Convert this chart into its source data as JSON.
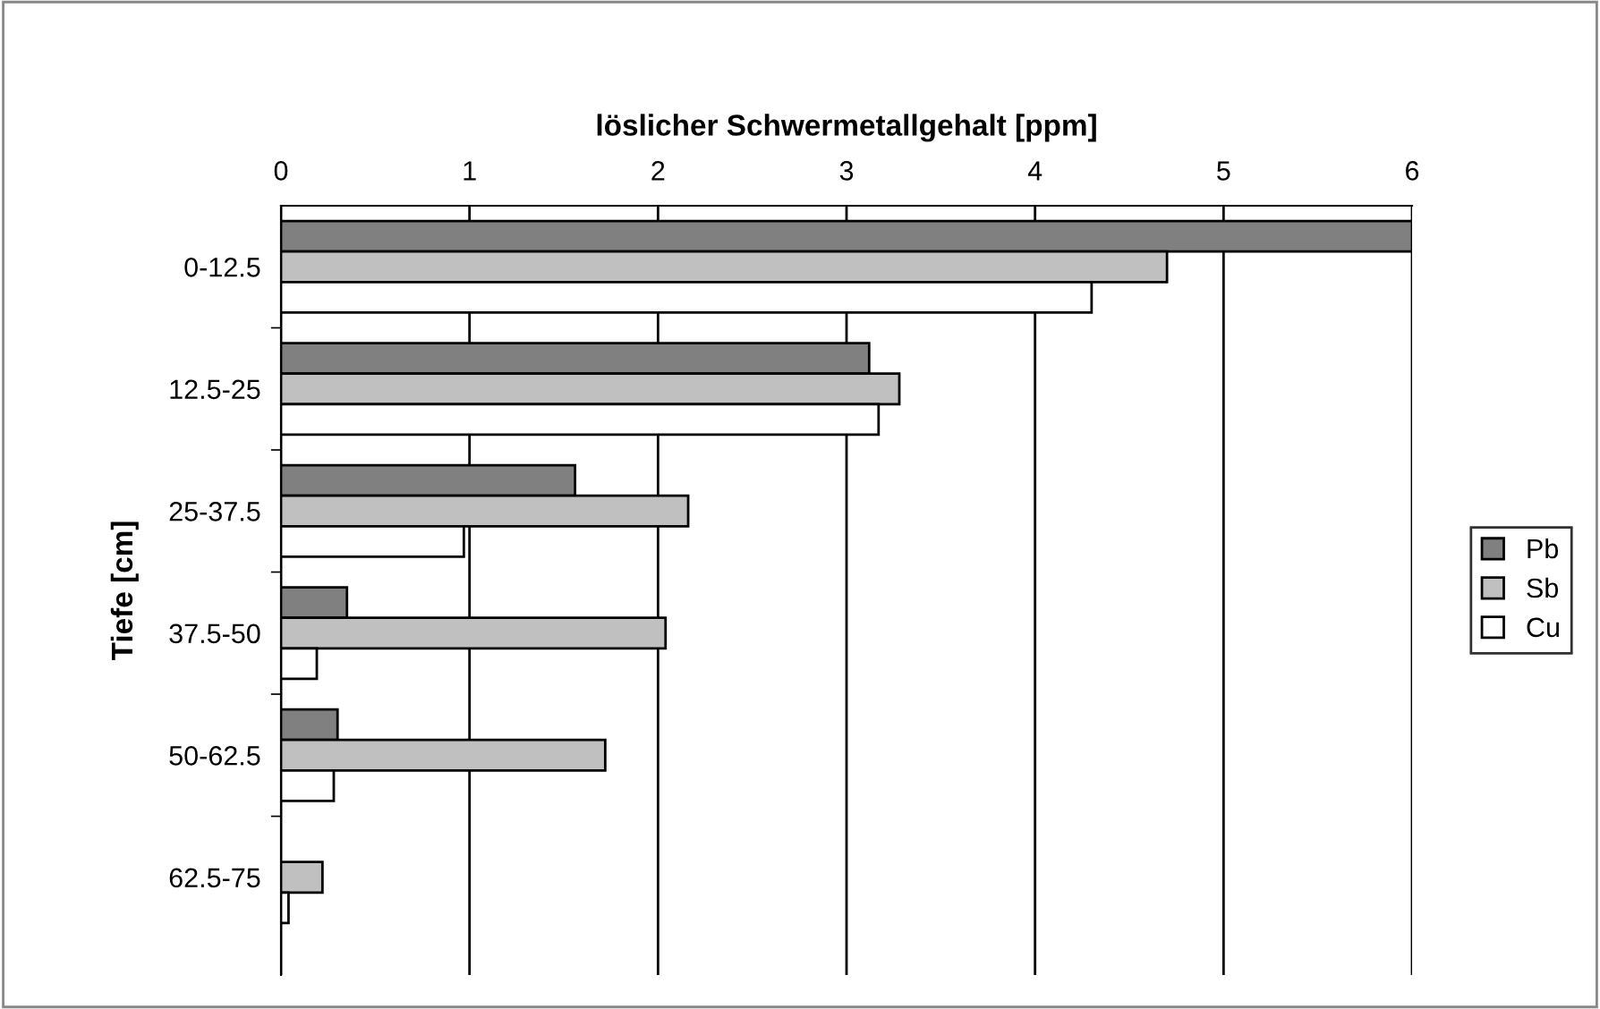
{
  "chart_data": {
    "type": "bar",
    "orientation": "horizontal",
    "xlabel": "löslicher Schwermetallgehalt [ppm]",
    "ylabel": "Tiefe [cm]",
    "categories": [
      "0-12.5",
      "12.5-25",
      "25-37.5",
      "37.5-50",
      "50-62.5",
      "62.5-75"
    ],
    "series": [
      {
        "name": "Pb",
        "color": "#808080",
        "values": [
          6.0,
          3.12,
          1.56,
          0.35,
          0.3,
          null
        ]
      },
      {
        "name": "Sb",
        "color": "#c0c0c0",
        "values": [
          4.7,
          3.28,
          2.16,
          2.04,
          1.72,
          0.22
        ]
      },
      {
        "name": "Cu",
        "color": "#ffffff",
        "values": [
          4.3,
          3.17,
          0.97,
          0.19,
          0.28,
          0.04
        ]
      }
    ],
    "xlim": [
      0,
      6
    ],
    "xticks": [
      0,
      1,
      2,
      3,
      4,
      5,
      6
    ],
    "grid": "x",
    "legend": "right"
  }
}
